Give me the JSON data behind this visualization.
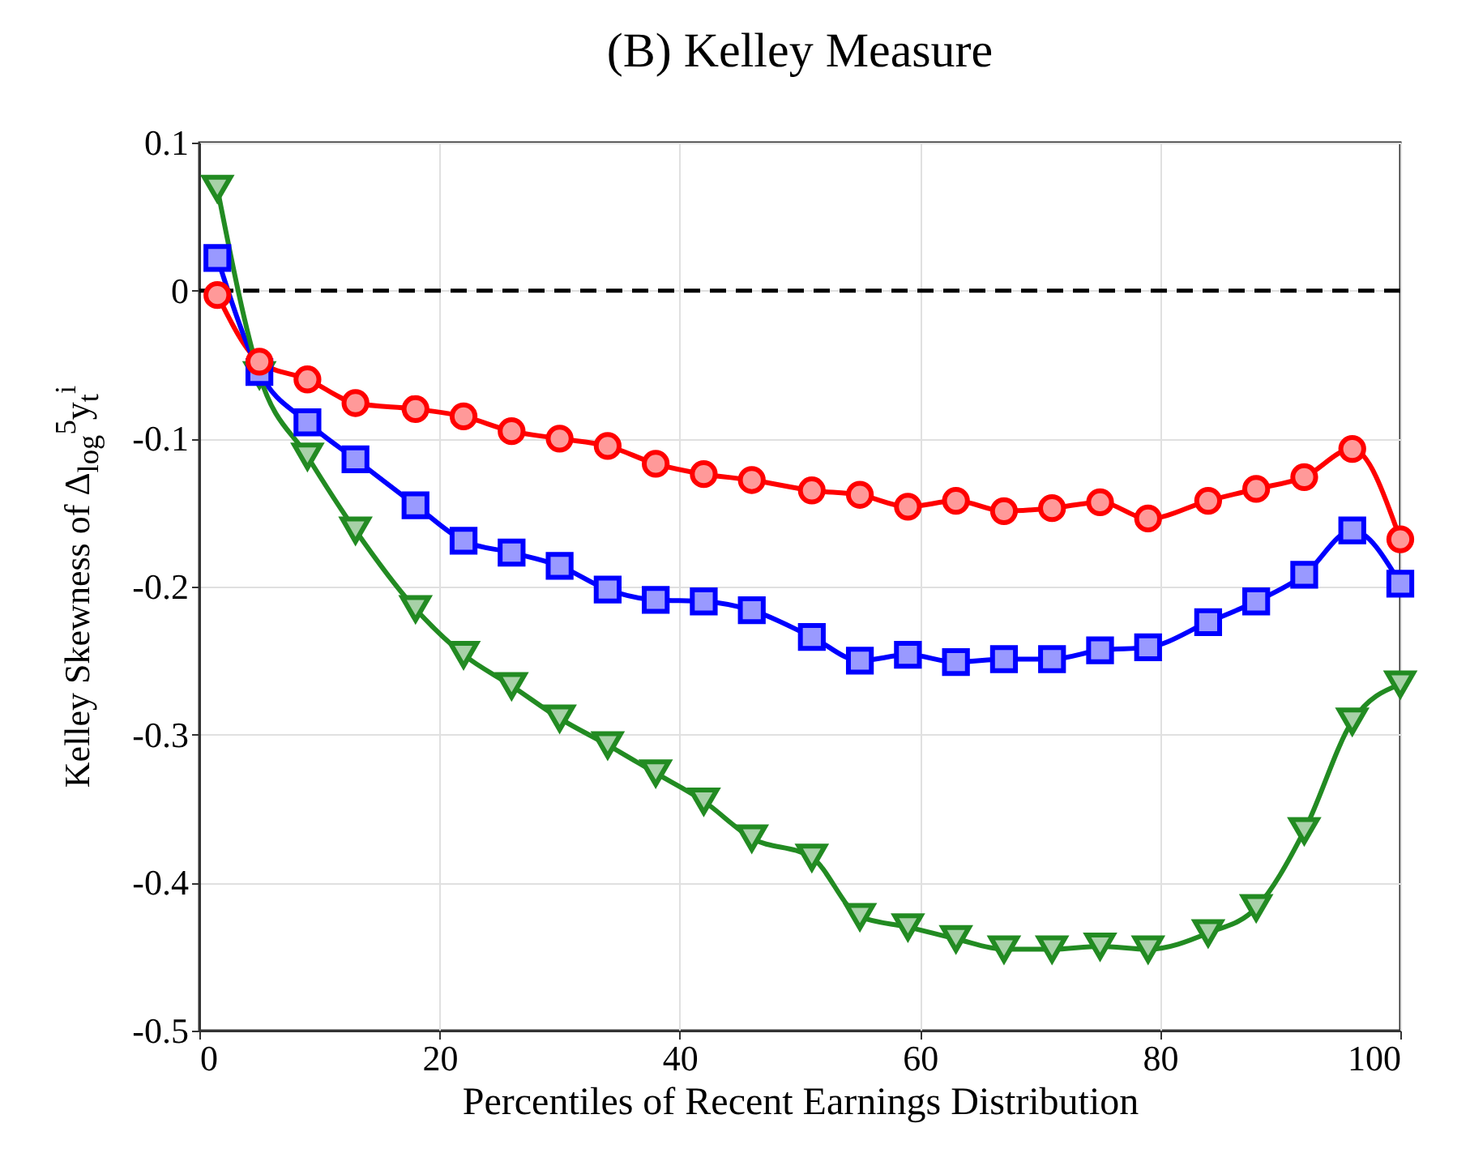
{
  "chart_data": {
    "type": "line",
    "title": "(B) Kelley Measure",
    "xlabel": "Percentiles of Recent Earnings Distribution",
    "ylabel": "Kelley Skewness of Δ$_{log}$$^{5}$y$_{t}$$^{i}$",
    "x": [
      1.5,
      5,
      9,
      13,
      18,
      22,
      26,
      30,
      34,
      38,
      42,
      46,
      51,
      55,
      59,
      63,
      67,
      71,
      75,
      79,
      84,
      88,
      92,
      96,
      100
    ],
    "series": [
      {
        "color": "#ff0000",
        "marker": "circle",
        "values": [
          -0.003,
          -0.048,
          -0.06,
          -0.076,
          -0.08,
          -0.085,
          -0.095,
          -0.1,
          -0.105,
          -0.117,
          -0.124,
          -0.128,
          -0.135,
          -0.138,
          -0.146,
          -0.142,
          -0.149,
          -0.147,
          -0.143,
          -0.154,
          -0.142,
          -0.134,
          -0.126,
          -0.107,
          -0.168
        ]
      },
      {
        "color": "#0000ff",
        "marker": "square",
        "values": [
          0.022,
          -0.055,
          -0.089,
          -0.114,
          -0.145,
          -0.169,
          -0.177,
          -0.186,
          -0.202,
          -0.209,
          -0.21,
          -0.216,
          -0.234,
          -0.25,
          -0.246,
          -0.251,
          -0.249,
          -0.249,
          -0.243,
          -0.241,
          -0.224,
          -0.21,
          -0.192,
          -0.162,
          -0.198
        ]
      },
      {
        "color": "#228b22",
        "marker": "triangle",
        "values": [
          0.069,
          -0.057,
          -0.112,
          -0.162,
          -0.215,
          -0.246,
          -0.267,
          -0.289,
          -0.307,
          -0.326,
          -0.345,
          -0.37,
          -0.383,
          -0.423,
          -0.43,
          -0.438,
          -0.445,
          -0.445,
          -0.443,
          -0.445,
          -0.434,
          -0.417,
          -0.365,
          -0.291,
          -0.266
        ]
      }
    ],
    "xlim": [
      0,
      100
    ],
    "xticks": [
      0,
      20,
      40,
      60,
      80,
      100
    ],
    "ylim": [
      -0.5,
      0.1
    ],
    "yticks": [
      -0.5,
      -0.4,
      -0.3,
      -0.2,
      -0.1,
      0,
      0.1
    ],
    "ref_lines": [
      {
        "axis": "y",
        "value": 0,
        "color": "#000000",
        "line_style": "dashed"
      }
    ],
    "grid": true,
    "legend": false,
    "line_style": "solid"
  }
}
